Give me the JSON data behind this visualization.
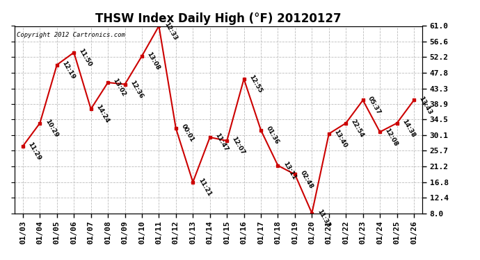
{
  "title": "THSW Index Daily High (°F) 20120127",
  "copyright": "Copyright 2012 Cartronics.com",
  "dates": [
    "01/03",
    "01/04",
    "01/05",
    "01/06",
    "01/07",
    "01/08",
    "01/09",
    "01/10",
    "01/11",
    "01/12",
    "01/13",
    "01/14",
    "01/15",
    "01/16",
    "01/17",
    "01/18",
    "01/19",
    "01/20",
    "01/21",
    "01/22",
    "01/23",
    "01/24",
    "01/25",
    "01/26"
  ],
  "values": [
    27.0,
    33.5,
    50.0,
    53.5,
    37.5,
    45.0,
    44.5,
    52.5,
    61.0,
    32.0,
    16.8,
    29.5,
    28.5,
    46.0,
    31.5,
    21.5,
    19.0,
    8.0,
    30.5,
    33.5,
    40.0,
    31.0,
    33.5,
    40.0
  ],
  "time_labels": [
    "11:29",
    "10:29",
    "12:19",
    "11:50",
    "14:24",
    "13:02",
    "12:36",
    "13:08",
    "12:33",
    "00:01",
    "11:21",
    "11:47",
    "12:07",
    "12:55",
    "01:36",
    "13:11",
    "02:48",
    "11:33",
    "13:40",
    "22:54",
    "05:37",
    "12:08",
    "14:38",
    "13:43"
  ],
  "ymin": 8.0,
  "ymax": 61.0,
  "yticks": [
    8.0,
    12.4,
    16.8,
    21.2,
    25.7,
    30.1,
    34.5,
    38.9,
    43.3,
    47.8,
    52.2,
    56.6,
    61.0
  ],
  "line_color": "#cc0000",
  "marker_color": "#cc0000",
  "bg_color": "#ffffff",
  "grid_color": "#bbbbbb",
  "title_fontsize": 12,
  "tick_fontsize": 8,
  "annotation_fontsize": 6.5
}
